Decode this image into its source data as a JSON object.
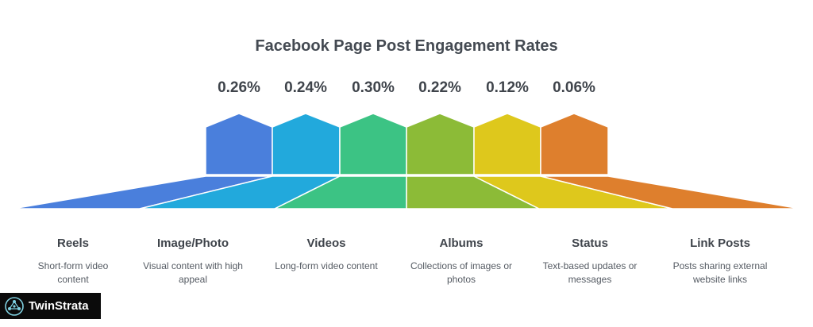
{
  "title": "Facebook Page Post Engagement Rates",
  "brand": {
    "name": "TwinStrata",
    "icon": "molecule-icon"
  },
  "items": [
    {
      "label": "Reels",
      "percent": "0.26%",
      "description": "Short-form video content",
      "color": "#4a7fdc"
    },
    {
      "label": "Image/Photo",
      "percent": "0.24%",
      "description": "Visual content with high appeal",
      "color": "#22a9dc"
    },
    {
      "label": "Videos",
      "percent": "0.30%",
      "description": "Long-form video content",
      "color": "#3cc384"
    },
    {
      "label": "Albums",
      "percent": "0.22%",
      "description": "Collections of images or photos",
      "color": "#8cbb37"
    },
    {
      "label": "Status",
      "percent": "0.12%",
      "description": "Text-based updates or messages",
      "color": "#dec81c"
    },
    {
      "label": "Link Posts",
      "percent": "0.06%",
      "description": "Posts sharing external website links",
      "color": "#de7f2d"
    }
  ]
}
